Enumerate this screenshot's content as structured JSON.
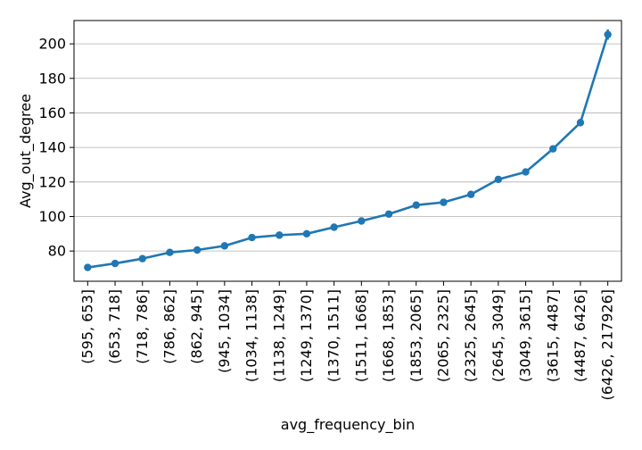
{
  "chart_data": {
    "type": "line",
    "title": "",
    "xlabel": "avg_frequency_bin",
    "ylabel": "Avg_out_degree",
    "categories": [
      "(595, 653]",
      "(653, 718]",
      "(718, 786]",
      "(786, 862]",
      "(862, 945]",
      "(945, 1034]",
      "(1034, 1138]",
      "(1138, 1249]",
      "(1249, 1370]",
      "(1370, 1511]",
      "(1511, 1668]",
      "(1668, 1853]",
      "(1853, 2065]",
      "(2065, 2325]",
      "(2325, 2645]",
      "(2645, 3049]",
      "(3049, 3615]",
      "(3615, 4487]",
      "(4487, 6426]",
      "(6426, 217926]"
    ],
    "values": [
      70.5,
      72.8,
      75.6,
      79.2,
      80.6,
      83.0,
      87.8,
      89.2,
      90.0,
      93.8,
      97.4,
      101.4,
      106.6,
      108.2,
      112.8,
      121.5,
      125.8,
      139.2,
      154.4,
      205.4
    ],
    "error": [
      0.8,
      0.8,
      0.8,
      0.9,
      0.9,
      1.0,
      1.0,
      1.0,
      1.0,
      1.1,
      1.1,
      1.2,
      1.2,
      1.3,
      1.4,
      1.5,
      1.6,
      1.8,
      2.2,
      3.0
    ],
    "ylim": [
      62.5,
      213.5
    ],
    "yticks": [
      80,
      100,
      120,
      140,
      160,
      180,
      200
    ],
    "grid": "horizontal",
    "color": "#1f77b4"
  }
}
